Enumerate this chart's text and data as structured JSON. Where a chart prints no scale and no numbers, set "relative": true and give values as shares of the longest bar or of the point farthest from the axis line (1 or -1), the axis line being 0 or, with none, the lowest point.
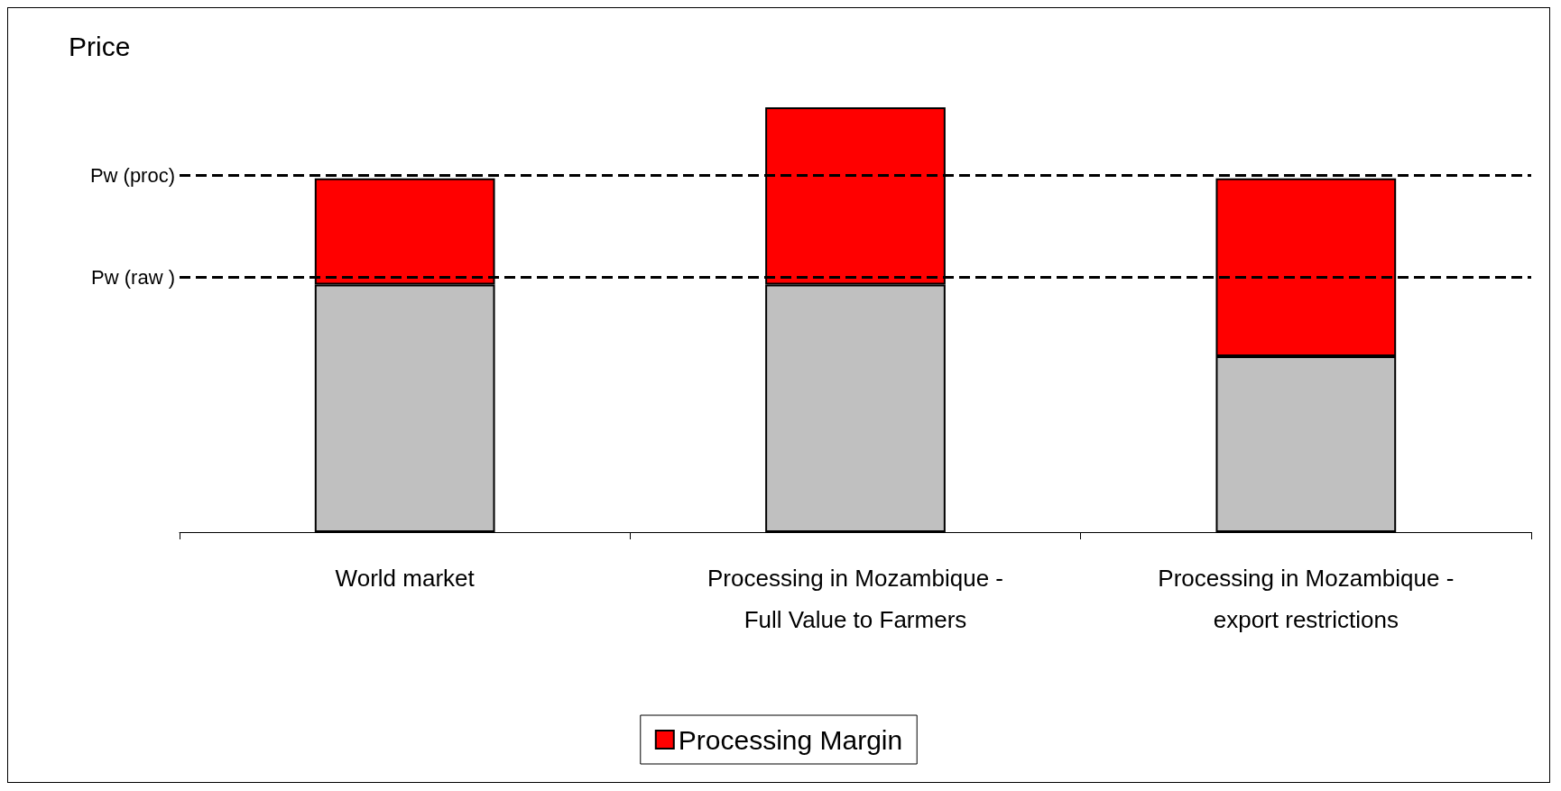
{
  "chart_data": {
    "type": "bar",
    "title": "Price",
    "relative": true,
    "stacked": true,
    "categories": [
      "World market",
      "Processing in Mozambique -\nFull Value to Farmers",
      "Processing in Mozambique -\nexport restrictions"
    ],
    "series": [
      {
        "color": "#c0c0c0",
        "values": [
          0.583,
          0.583,
          0.414
        ]
      },
      {
        "name": "Processing Margin",
        "color": "#ff0000",
        "values": [
          0.25,
          0.417,
          0.419
        ]
      }
    ],
    "ref_lines": [
      {
        "axis": "y",
        "value": 0.84,
        "label": "Pw (proc)",
        "line_style": "dashed",
        "color": "#000000"
      },
      {
        "axis": "y",
        "value": 0.6,
        "label": "Pw (raw )",
        "line_style": "dashed",
        "color": "#000000"
      }
    ],
    "grid": false,
    "legend": "bottom"
  }
}
